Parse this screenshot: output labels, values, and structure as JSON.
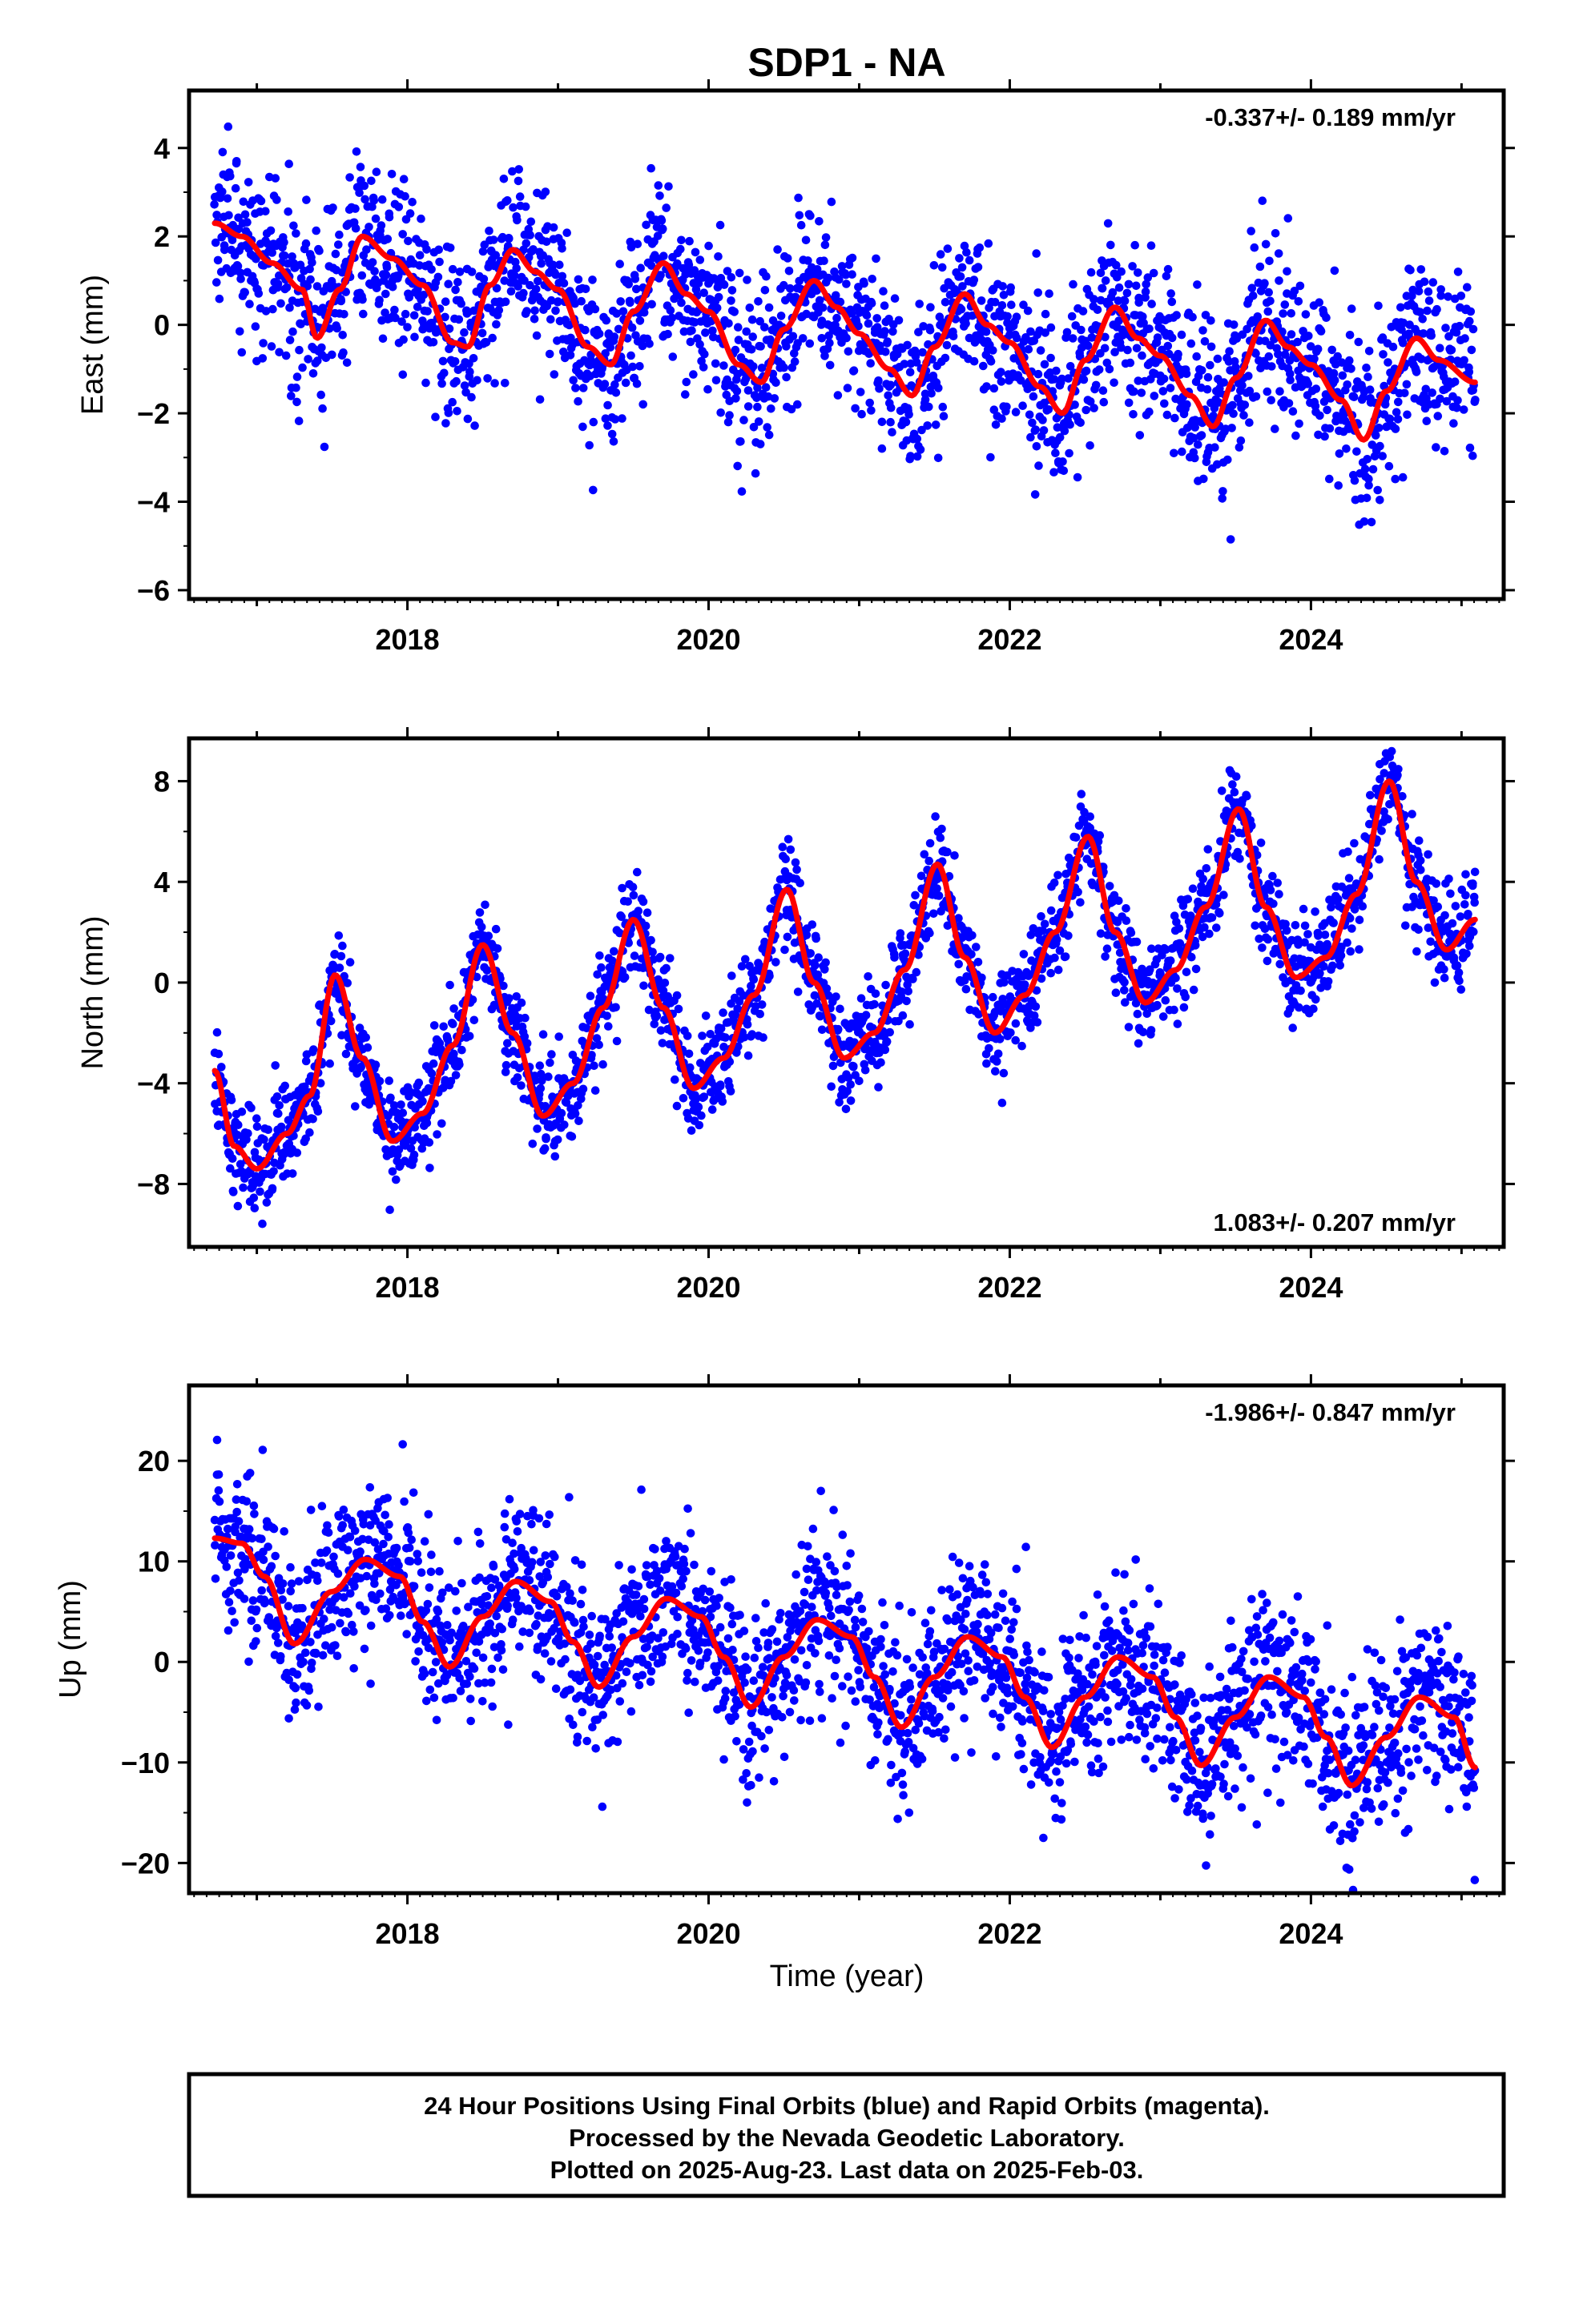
{
  "title": "SDP1 - NA",
  "colors": {
    "points": "#0000ff",
    "model": "#ff0000",
    "frame": "#000000"
  },
  "xlabel": "Time (year)",
  "footer": {
    "line1": "24 Hour Positions Using Final Orbits (blue) and Rapid Orbits (magenta).",
    "line2": "Processed by the Nevada Geodetic Laboratory.",
    "line3": "Plotted on 2025-Aug-23. Last data on 2025-Feb-03."
  },
  "chart_data": [
    {
      "type": "scatter",
      "component": "East",
      "ylabel": "East (mm)",
      "rate_text": "-0.337+/- 0.189 mm/yr",
      "xlim": [
        2016.55,
        2025.28
      ],
      "ylim": [
        -6.2,
        5.3
      ],
      "yticks": [
        -6,
        -4,
        -2,
        0,
        2,
        4
      ],
      "xticks": [
        2018,
        2020,
        2022,
        2024
      ],
      "series": [
        {
          "kind": "points",
          "start": 2016.72,
          "end": 2025.09,
          "rate": -0.337,
          "offset": 1.5,
          "annual": 1.05,
          "annual_phase": 2017.68,
          "semi": 0.55,
          "noise": 0.95
        },
        {
          "kind": "model",
          "x": [
            2016.72,
            2016.9,
            2017.1,
            2017.3,
            2017.4,
            2017.55,
            2017.7,
            2017.9,
            2018.1,
            2018.3,
            2018.4,
            2018.55,
            2018.7,
            2018.85,
            2019.0,
            2019.2,
            2019.35,
            2019.5,
            2019.7,
            2019.85,
            2020.0,
            2020.2,
            2020.35,
            2020.5,
            2020.7,
            2020.85,
            2021.0,
            2021.2,
            2021.35,
            2021.5,
            2021.7,
            2021.85,
            2022.0,
            2022.2,
            2022.35,
            2022.5,
            2022.7,
            2022.85,
            2023.0,
            2023.2,
            2023.35,
            2023.5,
            2023.7,
            2023.85,
            2024.0,
            2024.2,
            2024.35,
            2024.5,
            2024.7,
            2024.85,
            2025.09
          ],
          "y": [
            2.3,
            2.0,
            1.4,
            0.8,
            -0.3,
            0.8,
            2.0,
            1.5,
            0.9,
            -0.4,
            -0.5,
            0.9,
            1.7,
            1.2,
            0.8,
            -0.5,
            -0.9,
            0.3,
            1.4,
            0.7,
            0.3,
            -0.9,
            -1.3,
            -0.1,
            1.0,
            0.4,
            -0.2,
            -1.0,
            -1.6,
            -0.5,
            0.7,
            0.0,
            -0.4,
            -1.4,
            -2.0,
            -0.8,
            0.4,
            -0.3,
            -0.7,
            -1.6,
            -2.3,
            -1.2,
            0.1,
            -0.5,
            -0.9,
            -1.7,
            -2.6,
            -1.5,
            -0.3,
            -0.8,
            -1.3
          ]
        }
      ]
    },
    {
      "type": "scatter",
      "component": "North",
      "ylabel": "North (mm)",
      "rate_text": "1.083+/- 0.207 mm/yr",
      "xlim": [
        2016.55,
        2025.28
      ],
      "ylim": [
        -10.5,
        9.7
      ],
      "yticks": [
        -8,
        -4,
        0,
        4,
        8
      ],
      "xticks": [
        2018,
        2020,
        2022,
        2024
      ],
      "series": [
        {
          "kind": "points",
          "start": 2016.72,
          "end": 2025.09,
          "rate": 1.083,
          "offset": -3.0,
          "annual": 4.4,
          "annual_phase": 2017.52,
          "semi": 0.8,
          "noise": 1.0
        },
        {
          "kind": "model",
          "x": [
            2016.72,
            2016.85,
            2017.0,
            2017.2,
            2017.35,
            2017.52,
            2017.7,
            2017.9,
            2018.1,
            2018.3,
            2018.5,
            2018.7,
            2018.9,
            2019.1,
            2019.3,
            2019.5,
            2019.7,
            2019.9,
            2020.1,
            2020.3,
            2020.52,
            2020.7,
            2020.9,
            2021.1,
            2021.3,
            2021.52,
            2021.7,
            2021.9,
            2022.1,
            2022.3,
            2022.52,
            2022.7,
            2022.9,
            2023.1,
            2023.3,
            2023.52,
            2023.7,
            2023.9,
            2024.1,
            2024.3,
            2024.52,
            2024.7,
            2024.9,
            2025.09
          ],
          "y": [
            -3.5,
            -6.5,
            -7.4,
            -6.0,
            -4.5,
            0.3,
            -3.0,
            -6.3,
            -5.2,
            -2.5,
            1.5,
            -2.0,
            -5.3,
            -4.0,
            -1.0,
            2.5,
            -1.0,
            -4.2,
            -3.0,
            -0.5,
            3.7,
            0.0,
            -3.0,
            -2.0,
            0.5,
            4.7,
            1.0,
            -2.0,
            -0.5,
            2.0,
            5.8,
            2.0,
            -0.8,
            0.5,
            3.0,
            6.9,
            3.0,
            0.2,
            1.0,
            3.5,
            8.0,
            4.0,
            1.3,
            2.5
          ]
        }
      ]
    },
    {
      "type": "scatter",
      "component": "Up",
      "ylabel": "Up (mm)",
      "rate_text": "-1.986+/- 0.847 mm/yr",
      "xlim": [
        2016.55,
        2025.28
      ],
      "ylim": [
        -23,
        27.5
      ],
      "yticks": [
        -20,
        -10,
        0,
        10,
        20
      ],
      "xticks": [
        2018,
        2020,
        2022,
        2024
      ],
      "series": [
        {
          "kind": "points",
          "start": 2016.72,
          "end": 2025.09,
          "rate": -1.986,
          "offset": 11.0,
          "annual": 4.6,
          "annual_phase": 2017.72,
          "semi": 0.8,
          "noise": 4.2
        },
        {
          "kind": "model",
          "x": [
            2016.72,
            2016.9,
            2017.05,
            2017.25,
            2017.5,
            2017.72,
            2017.95,
            2018.1,
            2018.28,
            2018.5,
            2018.72,
            2018.95,
            2019.1,
            2019.27,
            2019.5,
            2019.72,
            2019.95,
            2020.1,
            2020.28,
            2020.5,
            2020.72,
            2020.95,
            2021.1,
            2021.28,
            2021.5,
            2021.72,
            2021.95,
            2022.1,
            2022.28,
            2022.5,
            2022.72,
            2022.95,
            2023.1,
            2023.27,
            2023.5,
            2023.72,
            2023.95,
            2024.1,
            2024.27,
            2024.5,
            2024.72,
            2024.95,
            2025.09
          ],
          "y": [
            12.3,
            11.8,
            8.5,
            1.8,
            7.0,
            10.2,
            8.5,
            4.0,
            -0.5,
            4.5,
            8.0,
            6.0,
            2.0,
            -2.5,
            2.5,
            6.3,
            4.5,
            0.5,
            -4.5,
            0.5,
            4.2,
            2.5,
            -1.5,
            -6.5,
            -1.5,
            2.5,
            0.5,
            -3.5,
            -8.5,
            -3.5,
            0.5,
            -1.5,
            -5.5,
            -10.3,
            -5.5,
            -1.5,
            -3.5,
            -7.5,
            -12.3,
            -7.5,
            -3.5,
            -5.5,
            -10.5
          ]
        }
      ]
    }
  ]
}
